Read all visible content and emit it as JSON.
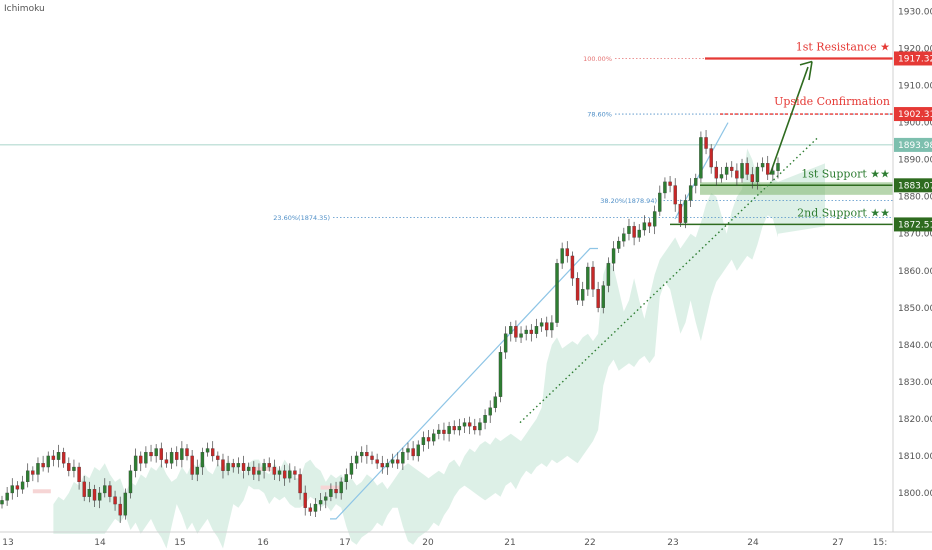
{
  "chart_data": {
    "type": "candlestick",
    "indicator_label": "Ichimoku",
    "x_tick_labels": [
      "13",
      "14",
      "15",
      "16",
      "17",
      "20",
      "21",
      "22",
      "23",
      "24",
      "27",
      "15:"
    ],
    "y_ticks": [
      1800,
      1810,
      1820,
      1830,
      1840,
      1850,
      1860,
      1870,
      1880,
      1890,
      1900,
      1910,
      1920,
      1930
    ],
    "ylim": [
      1790,
      1933
    ],
    "grid": false,
    "annotations": [
      {
        "text": "1st Resistance ★",
        "price": 1917.32,
        "color": "#e53935"
      },
      {
        "text": "Upside Confirmation",
        "price": 1902.31,
        "color": "#e53935"
      },
      {
        "text": "1st Support ★★",
        "price": 1883.07,
        "color": "#2e7d32"
      },
      {
        "text": "2nd Support ★★",
        "price": 1872.51,
        "color": "#2e7d32"
      }
    ],
    "price_badges": [
      {
        "text": "1917.32",
        "price": 1917.32,
        "color": "#e53935"
      },
      {
        "text": "1902.31",
        "price": 1902.31,
        "color": "#e53935"
      },
      {
        "text": "1893.98",
        "price": 1893.98,
        "color": "#7dbfae"
      },
      {
        "text": "1883.07",
        "price": 1883.07,
        "color": "#2e6b1f"
      },
      {
        "text": "1872.51",
        "price": 1872.51,
        "color": "#2e6b1f"
      }
    ],
    "fib_labels": [
      {
        "text": "100.00%",
        "price": 1917.32,
        "color": "#e57373"
      },
      {
        "text": "78.60%",
        "price": 1902.31,
        "color": "#4f8fc7"
      },
      {
        "text": "38.20%(1878.94)",
        "price": 1878.94,
        "color": "#4f8fc7"
      },
      {
        "text": "23.60%(1874.35)",
        "price": 1874.35,
        "color": "#4f8fc7"
      }
    ],
    "support_zone": [
      1880.5,
      1883.9
    ],
    "current_price": 1893.98,
    "candles_close": [
      1798,
      1800,
      1802,
      1801,
      1803,
      1806,
      1805,
      1808,
      1807,
      1810,
      1809,
      1811,
      1808,
      1806,
      1807,
      1803,
      1799,
      1801,
      1798,
      1800,
      1802,
      1799,
      1797,
      1794,
      1800,
      1806,
      1810,
      1808,
      1811,
      1810,
      1812,
      1809,
      1808,
      1811,
      1809,
      1812,
      1810,
      1805,
      1807,
      1811,
      1812,
      1810,
      1809,
      1806,
      1808,
      1807,
      1808,
      1806,
      1807,
      1805,
      1806,
      1808,
      1807,
      1805,
      1806,
      1804,
      1806,
      1805,
      1800,
      1796,
      1795,
      1797,
      1798,
      1799,
      1801,
      1800,
      1803,
      1805,
      1808,
      1810,
      1811,
      1810,
      1809,
      1808,
      1807,
      1808,
      1809,
      1808,
      1811,
      1812,
      1810,
      1813,
      1815,
      1814,
      1816,
      1817,
      1816,
      1818,
      1817,
      1818,
      1819,
      1818,
      1817,
      1819,
      1821,
      1823,
      1826,
      1838,
      1843,
      1845,
      1842,
      1843,
      1844,
      1843,
      1845,
      1846,
      1844,
      1846,
      1862,
      1866,
      1864,
      1858,
      1852,
      1855,
      1861,
      1855,
      1850,
      1856,
      1862,
      1866,
      1868,
      1870,
      1872,
      1869,
      1871,
      1873,
      1872,
      1876,
      1881,
      1884,
      1883,
      1878,
      1873,
      1879,
      1883,
      1885,
      1896,
      1893,
      1888,
      1885,
      1886,
      1888,
      1887,
      1885,
      1889,
      1886,
      1884,
      1888,
      1889,
      1886,
      1887,
      1889
    ]
  }
}
